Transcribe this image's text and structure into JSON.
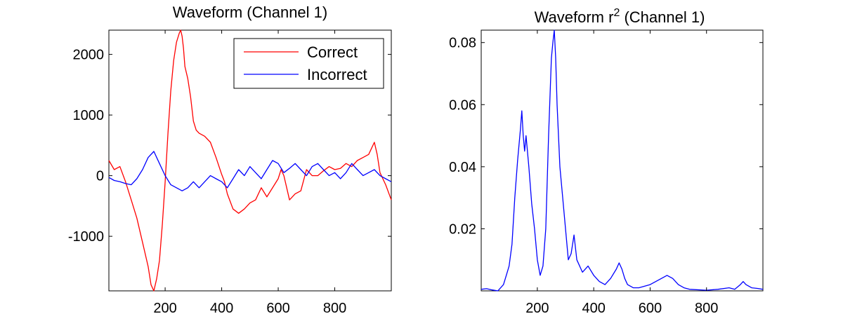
{
  "chart_data": [
    {
      "type": "line",
      "title": "Waveform (Channel 1)",
      "xlabel": "",
      "ylabel": "",
      "xlim": [
        1,
        1000
      ],
      "ylim": [
        -1900,
        2400
      ],
      "xticks": [
        200,
        400,
        600,
        800
      ],
      "yticks": [
        -1000,
        0,
        1000,
        2000
      ],
      "grid": false,
      "legend": "top-right",
      "series": [
        {
          "name": "Correct",
          "color": "#ff0000",
          "x": [
            1,
            20,
            40,
            60,
            80,
            100,
            120,
            140,
            150,
            160,
            170,
            180,
            190,
            200,
            210,
            220,
            230,
            240,
            250,
            255,
            260,
            265,
            270,
            280,
            290,
            300,
            310,
            320,
            340,
            360,
            380,
            400,
            410,
            420,
            440,
            460,
            480,
            500,
            520,
            540,
            560,
            580,
            600,
            610,
            620,
            640,
            660,
            680,
            700,
            720,
            740,
            760,
            780,
            800,
            820,
            840,
            860,
            880,
            900,
            920,
            940,
            950,
            960,
            980,
            1000
          ],
          "y": [
            250,
            100,
            150,
            -100,
            -400,
            -700,
            -1100,
            -1500,
            -1800,
            -1900,
            -1700,
            -1400,
            -800,
            -100,
            700,
            1400,
            1900,
            2200,
            2350,
            2400,
            2300,
            2100,
            1800,
            1600,
            1300,
            900,
            750,
            700,
            650,
            550,
            300,
            20,
            -100,
            -300,
            -550,
            -620,
            -550,
            -450,
            -400,
            -200,
            -350,
            -200,
            -50,
            100,
            0,
            -400,
            -300,
            -250,
            100,
            0,
            0,
            80,
            150,
            100,
            120,
            200,
            150,
            250,
            300,
            350,
            550,
            350,
            50,
            -150,
            -400
          ]
        },
        {
          "name": "Incorrect",
          "color": "#0000ff",
          "x": [
            1,
            20,
            40,
            60,
            80,
            100,
            120,
            140,
            160,
            180,
            200,
            220,
            240,
            260,
            280,
            300,
            320,
            340,
            360,
            380,
            400,
            420,
            440,
            460,
            480,
            500,
            520,
            540,
            560,
            580,
            600,
            620,
            640,
            660,
            680,
            700,
            720,
            740,
            760,
            780,
            800,
            820,
            840,
            860,
            880,
            900,
            920,
            940,
            960,
            980,
            1000
          ],
          "y": [
            -30,
            -80,
            -100,
            -130,
            -150,
            -50,
            100,
            300,
            400,
            200,
            0,
            -150,
            -200,
            -250,
            -200,
            -100,
            -200,
            -100,
            0,
            -50,
            -100,
            -200,
            -50,
            100,
            0,
            150,
            50,
            -50,
            100,
            250,
            200,
            50,
            120,
            200,
            100,
            0,
            150,
            200,
            100,
            0,
            50,
            -50,
            50,
            200,
            100,
            0,
            50,
            100,
            0,
            -50,
            -100
          ]
        }
      ]
    },
    {
      "type": "line",
      "title": "Waveform r² (Channel 1)",
      "title_main": "Waveform r",
      "title_sup": "2",
      "title_tail": " (Channel 1)",
      "xlabel": "",
      "ylabel": "",
      "xlim": [
        1,
        1000
      ],
      "ylim": [
        0,
        0.084
      ],
      "xticks": [
        200,
        400,
        600,
        800
      ],
      "yticks": [
        0.02,
        0.04,
        0.06,
        0.08
      ],
      "grid": false,
      "series": [
        {
          "name": "",
          "color": "#0000ff",
          "x": [
            1,
            20,
            40,
            60,
            80,
            90,
            100,
            110,
            120,
            130,
            140,
            145,
            150,
            155,
            160,
            170,
            180,
            190,
            200,
            210,
            220,
            230,
            240,
            250,
            255,
            260,
            265,
            270,
            280,
            290,
            300,
            310,
            320,
            330,
            340,
            360,
            380,
            400,
            420,
            440,
            460,
            480,
            490,
            500,
            510,
            520,
            540,
            560,
            600,
            640,
            660,
            680,
            700,
            720,
            740,
            800,
            840,
            880,
            900,
            920,
            930,
            940,
            960,
            980,
            1000
          ],
          "y": [
            0.0005,
            0.0007,
            0.0003,
            0,
            0.002,
            0.005,
            0.008,
            0.015,
            0.03,
            0.042,
            0.052,
            0.058,
            0.05,
            0.045,
            0.05,
            0.04,
            0.028,
            0.02,
            0.01,
            0.005,
            0.008,
            0.02,
            0.05,
            0.075,
            0.08,
            0.084,
            0.075,
            0.06,
            0.04,
            0.03,
            0.02,
            0.01,
            0.012,
            0.018,
            0.01,
            0.006,
            0.008,
            0.005,
            0.003,
            0.002,
            0.004,
            0.007,
            0.009,
            0.007,
            0.004,
            0.002,
            0.001,
            0.001,
            0.002,
            0.004,
            0.005,
            0.004,
            0.002,
            0.001,
            0.0005,
            0.0002,
            0.0005,
            0.001,
            0.0005,
            0.002,
            0.003,
            0.002,
            0.001,
            0.0008,
            0.0005
          ]
        }
      ]
    }
  ]
}
